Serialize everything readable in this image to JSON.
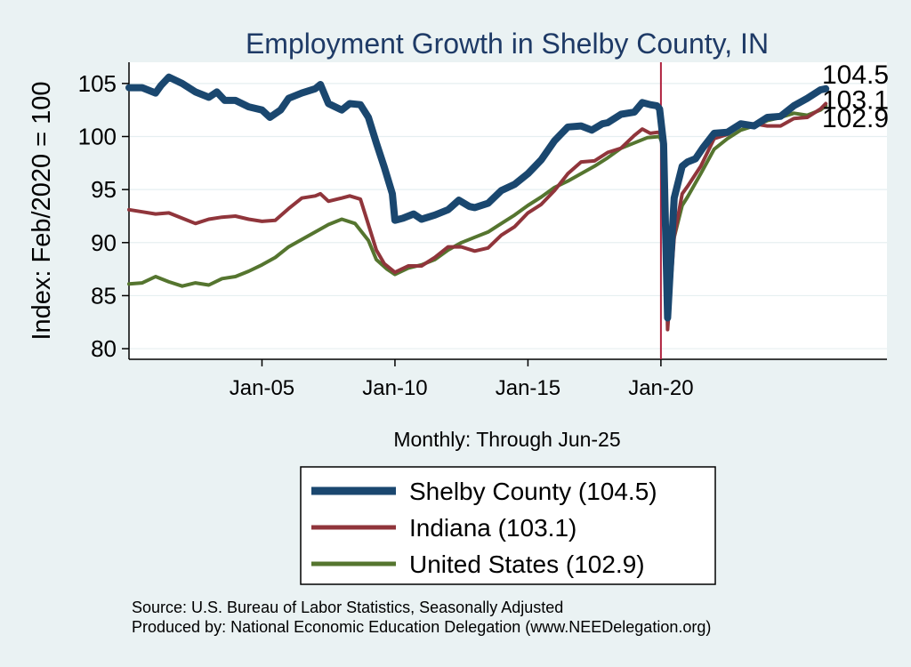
{
  "chart_data": {
    "type": "line",
    "title": "Employment Growth in Shelby  County, IN",
    "ylabel": "Index: Feb/2020 = 100",
    "xlabel": "Monthly: Through Jun-25",
    "ylim": [
      79,
      107
    ],
    "yticks": [
      80,
      85,
      90,
      95,
      100,
      105
    ],
    "xlim": [
      2000.0,
      2028.5
    ],
    "xticks": [
      {
        "label": "Jan-05",
        "value": 2005.0
      },
      {
        "label": "Jan-10",
        "value": 2010.0
      },
      {
        "label": "Jan-15",
        "value": 2015.0
      },
      {
        "label": "Jan-20",
        "value": 2020.0
      }
    ],
    "reference_line": {
      "x": 2020.0,
      "color": "#b0223f"
    },
    "series": [
      {
        "name": "Shelby  County",
        "legend_label": "Shelby  County (104.5)",
        "end_label": "104.5",
        "color": "#1a476f",
        "width": 8,
        "points": [
          [
            2000.0,
            104.6
          ],
          [
            2000.5,
            104.6
          ],
          [
            2001.0,
            104.1
          ],
          [
            2001.2,
            104.8
          ],
          [
            2001.5,
            105.6
          ],
          [
            2002.0,
            105.0
          ],
          [
            2002.5,
            104.2
          ],
          [
            2003.0,
            103.7
          ],
          [
            2003.3,
            104.2
          ],
          [
            2003.6,
            103.4
          ],
          [
            2004.0,
            103.4
          ],
          [
            2004.5,
            102.8
          ],
          [
            2005.0,
            102.5
          ],
          [
            2005.3,
            101.8
          ],
          [
            2005.7,
            102.5
          ],
          [
            2006.0,
            103.6
          ],
          [
            2006.5,
            104.1
          ],
          [
            2007.0,
            104.5
          ],
          [
            2007.2,
            104.9
          ],
          [
            2007.5,
            103.1
          ],
          [
            2008.0,
            102.5
          ],
          [
            2008.3,
            103.1
          ],
          [
            2008.7,
            103.0
          ],
          [
            2009.0,
            101.8
          ],
          [
            2009.3,
            99.4
          ],
          [
            2009.6,
            97.1
          ],
          [
            2009.9,
            94.6
          ],
          [
            2010.0,
            92.1
          ],
          [
            2010.3,
            92.3
          ],
          [
            2010.7,
            92.7
          ],
          [
            2011.0,
            92.2
          ],
          [
            2011.5,
            92.6
          ],
          [
            2012.0,
            93.1
          ],
          [
            2012.4,
            94.0
          ],
          [
            2012.8,
            93.4
          ],
          [
            2013.0,
            93.3
          ],
          [
            2013.5,
            93.7
          ],
          [
            2014.0,
            94.9
          ],
          [
            2014.5,
            95.5
          ],
          [
            2015.0,
            96.5
          ],
          [
            2015.5,
            97.8
          ],
          [
            2016.0,
            99.6
          ],
          [
            2016.5,
            100.9
          ],
          [
            2017.0,
            101.0
          ],
          [
            2017.4,
            100.6
          ],
          [
            2017.8,
            101.2
          ],
          [
            2018.0,
            101.3
          ],
          [
            2018.5,
            102.1
          ],
          [
            2019.0,
            102.3
          ],
          [
            2019.3,
            103.2
          ],
          [
            2019.6,
            103.0
          ],
          [
            2019.85,
            102.9
          ],
          [
            2019.95,
            102.6
          ],
          [
            2020.1,
            99.3
          ],
          [
            2020.25,
            82.9
          ],
          [
            2020.5,
            94.2
          ],
          [
            2020.8,
            97.2
          ],
          [
            2021.0,
            97.6
          ],
          [
            2021.3,
            97.9
          ],
          [
            2021.6,
            99.0
          ],
          [
            2022.0,
            100.3
          ],
          [
            2022.5,
            100.4
          ],
          [
            2023.0,
            101.2
          ],
          [
            2023.5,
            101.0
          ],
          [
            2024.0,
            101.8
          ],
          [
            2024.5,
            101.9
          ],
          [
            2025.0,
            102.9
          ],
          [
            2025.5,
            103.6
          ],
          [
            2026.0,
            104.4
          ],
          [
            2026.2,
            104.5
          ]
        ]
      },
      {
        "name": "Indiana",
        "legend_label": "Indiana (103.1)",
        "end_label": "103.1",
        "color": "#90353b",
        "width": 4,
        "points": [
          [
            2000.0,
            93.1
          ],
          [
            2000.5,
            92.9
          ],
          [
            2001.0,
            92.7
          ],
          [
            2001.5,
            92.8
          ],
          [
            2002.0,
            92.3
          ],
          [
            2002.5,
            91.8
          ],
          [
            2003.0,
            92.2
          ],
          [
            2003.5,
            92.4
          ],
          [
            2004.0,
            92.5
          ],
          [
            2004.5,
            92.2
          ],
          [
            2005.0,
            92.0
          ],
          [
            2005.5,
            92.1
          ],
          [
            2006.0,
            93.2
          ],
          [
            2006.5,
            94.2
          ],
          [
            2007.0,
            94.4
          ],
          [
            2007.2,
            94.6
          ],
          [
            2007.5,
            93.9
          ],
          [
            2008.0,
            94.2
          ],
          [
            2008.3,
            94.4
          ],
          [
            2008.7,
            94.1
          ],
          [
            2009.0,
            91.7
          ],
          [
            2009.3,
            89.3
          ],
          [
            2009.6,
            88.0
          ],
          [
            2010.0,
            87.2
          ],
          [
            2010.5,
            87.8
          ],
          [
            2011.0,
            87.8
          ],
          [
            2011.5,
            88.6
          ],
          [
            2012.0,
            89.6
          ],
          [
            2012.5,
            89.6
          ],
          [
            2013.0,
            89.2
          ],
          [
            2013.5,
            89.5
          ],
          [
            2014.0,
            90.7
          ],
          [
            2014.5,
            91.5
          ],
          [
            2015.0,
            92.8
          ],
          [
            2015.5,
            93.6
          ],
          [
            2016.0,
            94.9
          ],
          [
            2016.5,
            96.5
          ],
          [
            2017.0,
            97.6
          ],
          [
            2017.5,
            97.7
          ],
          [
            2018.0,
            98.5
          ],
          [
            2018.5,
            98.9
          ],
          [
            2019.0,
            100.1
          ],
          [
            2019.3,
            100.7
          ],
          [
            2019.6,
            100.3
          ],
          [
            2019.9,
            100.4
          ],
          [
            2020.1,
            100.0
          ],
          [
            2020.25,
            81.8
          ],
          [
            2020.5,
            90.5
          ],
          [
            2020.8,
            94.6
          ],
          [
            2021.0,
            95.3
          ],
          [
            2021.5,
            97.2
          ],
          [
            2022.0,
            99.8
          ],
          [
            2022.5,
            100.2
          ],
          [
            2023.0,
            101.1
          ],
          [
            2023.5,
            101.2
          ],
          [
            2024.0,
            101.0
          ],
          [
            2024.5,
            101.0
          ],
          [
            2025.0,
            101.7
          ],
          [
            2025.5,
            101.8
          ],
          [
            2026.0,
            102.6
          ],
          [
            2026.2,
            103.1
          ]
        ]
      },
      {
        "name": "United States",
        "legend_label": "United States (102.9)",
        "end_label": "102.9",
        "color": "#55752f",
        "width": 4,
        "points": [
          [
            2000.0,
            86.1
          ],
          [
            2000.5,
            86.2
          ],
          [
            2001.0,
            86.8
          ],
          [
            2001.5,
            86.3
          ],
          [
            2002.0,
            85.9
          ],
          [
            2002.5,
            86.2
          ],
          [
            2003.0,
            86.0
          ],
          [
            2003.5,
            86.6
          ],
          [
            2004.0,
            86.8
          ],
          [
            2004.5,
            87.3
          ],
          [
            2005.0,
            87.9
          ],
          [
            2005.5,
            88.6
          ],
          [
            2006.0,
            89.6
          ],
          [
            2006.5,
            90.3
          ],
          [
            2007.0,
            91.0
          ],
          [
            2007.5,
            91.7
          ],
          [
            2008.0,
            92.2
          ],
          [
            2008.5,
            91.8
          ],
          [
            2009.0,
            90.2
          ],
          [
            2009.3,
            88.4
          ],
          [
            2009.7,
            87.5
          ],
          [
            2010.0,
            87.0
          ],
          [
            2010.5,
            87.6
          ],
          [
            2011.0,
            87.9
          ],
          [
            2011.5,
            88.4
          ],
          [
            2012.0,
            89.3
          ],
          [
            2012.5,
            90.0
          ],
          [
            2013.0,
            90.5
          ],
          [
            2013.5,
            91.0
          ],
          [
            2014.0,
            91.8
          ],
          [
            2014.5,
            92.6
          ],
          [
            2015.0,
            93.5
          ],
          [
            2015.5,
            94.3
          ],
          [
            2016.0,
            95.2
          ],
          [
            2016.5,
            95.8
          ],
          [
            2017.0,
            96.5
          ],
          [
            2017.5,
            97.2
          ],
          [
            2018.0,
            98.0
          ],
          [
            2018.5,
            98.9
          ],
          [
            2019.0,
            99.4
          ],
          [
            2019.5,
            99.9
          ],
          [
            2019.95,
            100.0
          ],
          [
            2020.1,
            99.0
          ],
          [
            2020.25,
            85.6
          ],
          [
            2020.5,
            90.5
          ],
          [
            2020.8,
            93.5
          ],
          [
            2021.0,
            94.3
          ],
          [
            2021.5,
            96.5
          ],
          [
            2022.0,
            98.8
          ],
          [
            2022.5,
            99.8
          ],
          [
            2023.0,
            100.6
          ],
          [
            2023.5,
            101.0
          ],
          [
            2024.0,
            101.5
          ],
          [
            2024.5,
            101.8
          ],
          [
            2025.0,
            102.2
          ],
          [
            2025.5,
            102.0
          ],
          [
            2026.0,
            102.5
          ],
          [
            2026.2,
            102.9
          ]
        ]
      }
    ],
    "legend_position": "bottom",
    "annotations": [
      "Source: U.S. Bureau of Labor Statistics, Seasonally Adjusted",
      "Produced by: National Economic Education Delegation (www.NEEDelegation.org)"
    ]
  }
}
